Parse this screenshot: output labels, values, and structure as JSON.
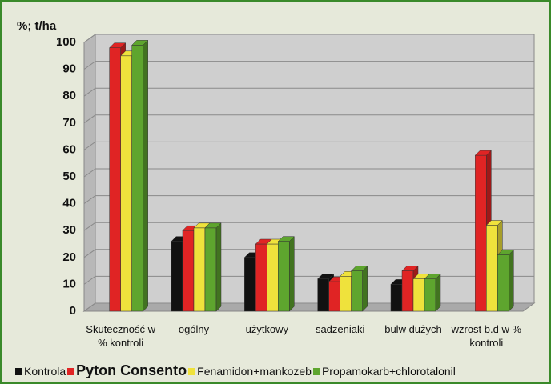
{
  "chart_data": {
    "type": "bar3d",
    "y_label": "%; t/ha",
    "categories": [
      "Skuteczność w % kontroli",
      "ogólny",
      "użytkowy",
      "sadzeniaki",
      "bulw dużych",
      "wzrost b.d w % kontroli"
    ],
    "series": [
      {
        "name": "Kontrola",
        "color": "#111111",
        "values": [
          null,
          26,
          20,
          12,
          10,
          null
        ]
      },
      {
        "name": "Pyton Consento",
        "color": "#e02424",
        "values": [
          98,
          30,
          25,
          11,
          15,
          58
        ]
      },
      {
        "name": "Fenamidon+mankozeb",
        "color": "#efe23c",
        "values": [
          95,
          31,
          25,
          13,
          12,
          32
        ]
      },
      {
        "name": "Propamokarb+chlorotalonil",
        "color": "#5ea52e",
        "values": [
          99,
          31,
          26,
          15,
          12,
          21
        ]
      }
    ],
    "ylim": [
      0,
      100
    ],
    "yticks": [
      0,
      10,
      20,
      30,
      40,
      50,
      60,
      70,
      80,
      90,
      100
    ],
    "grid": true
  }
}
